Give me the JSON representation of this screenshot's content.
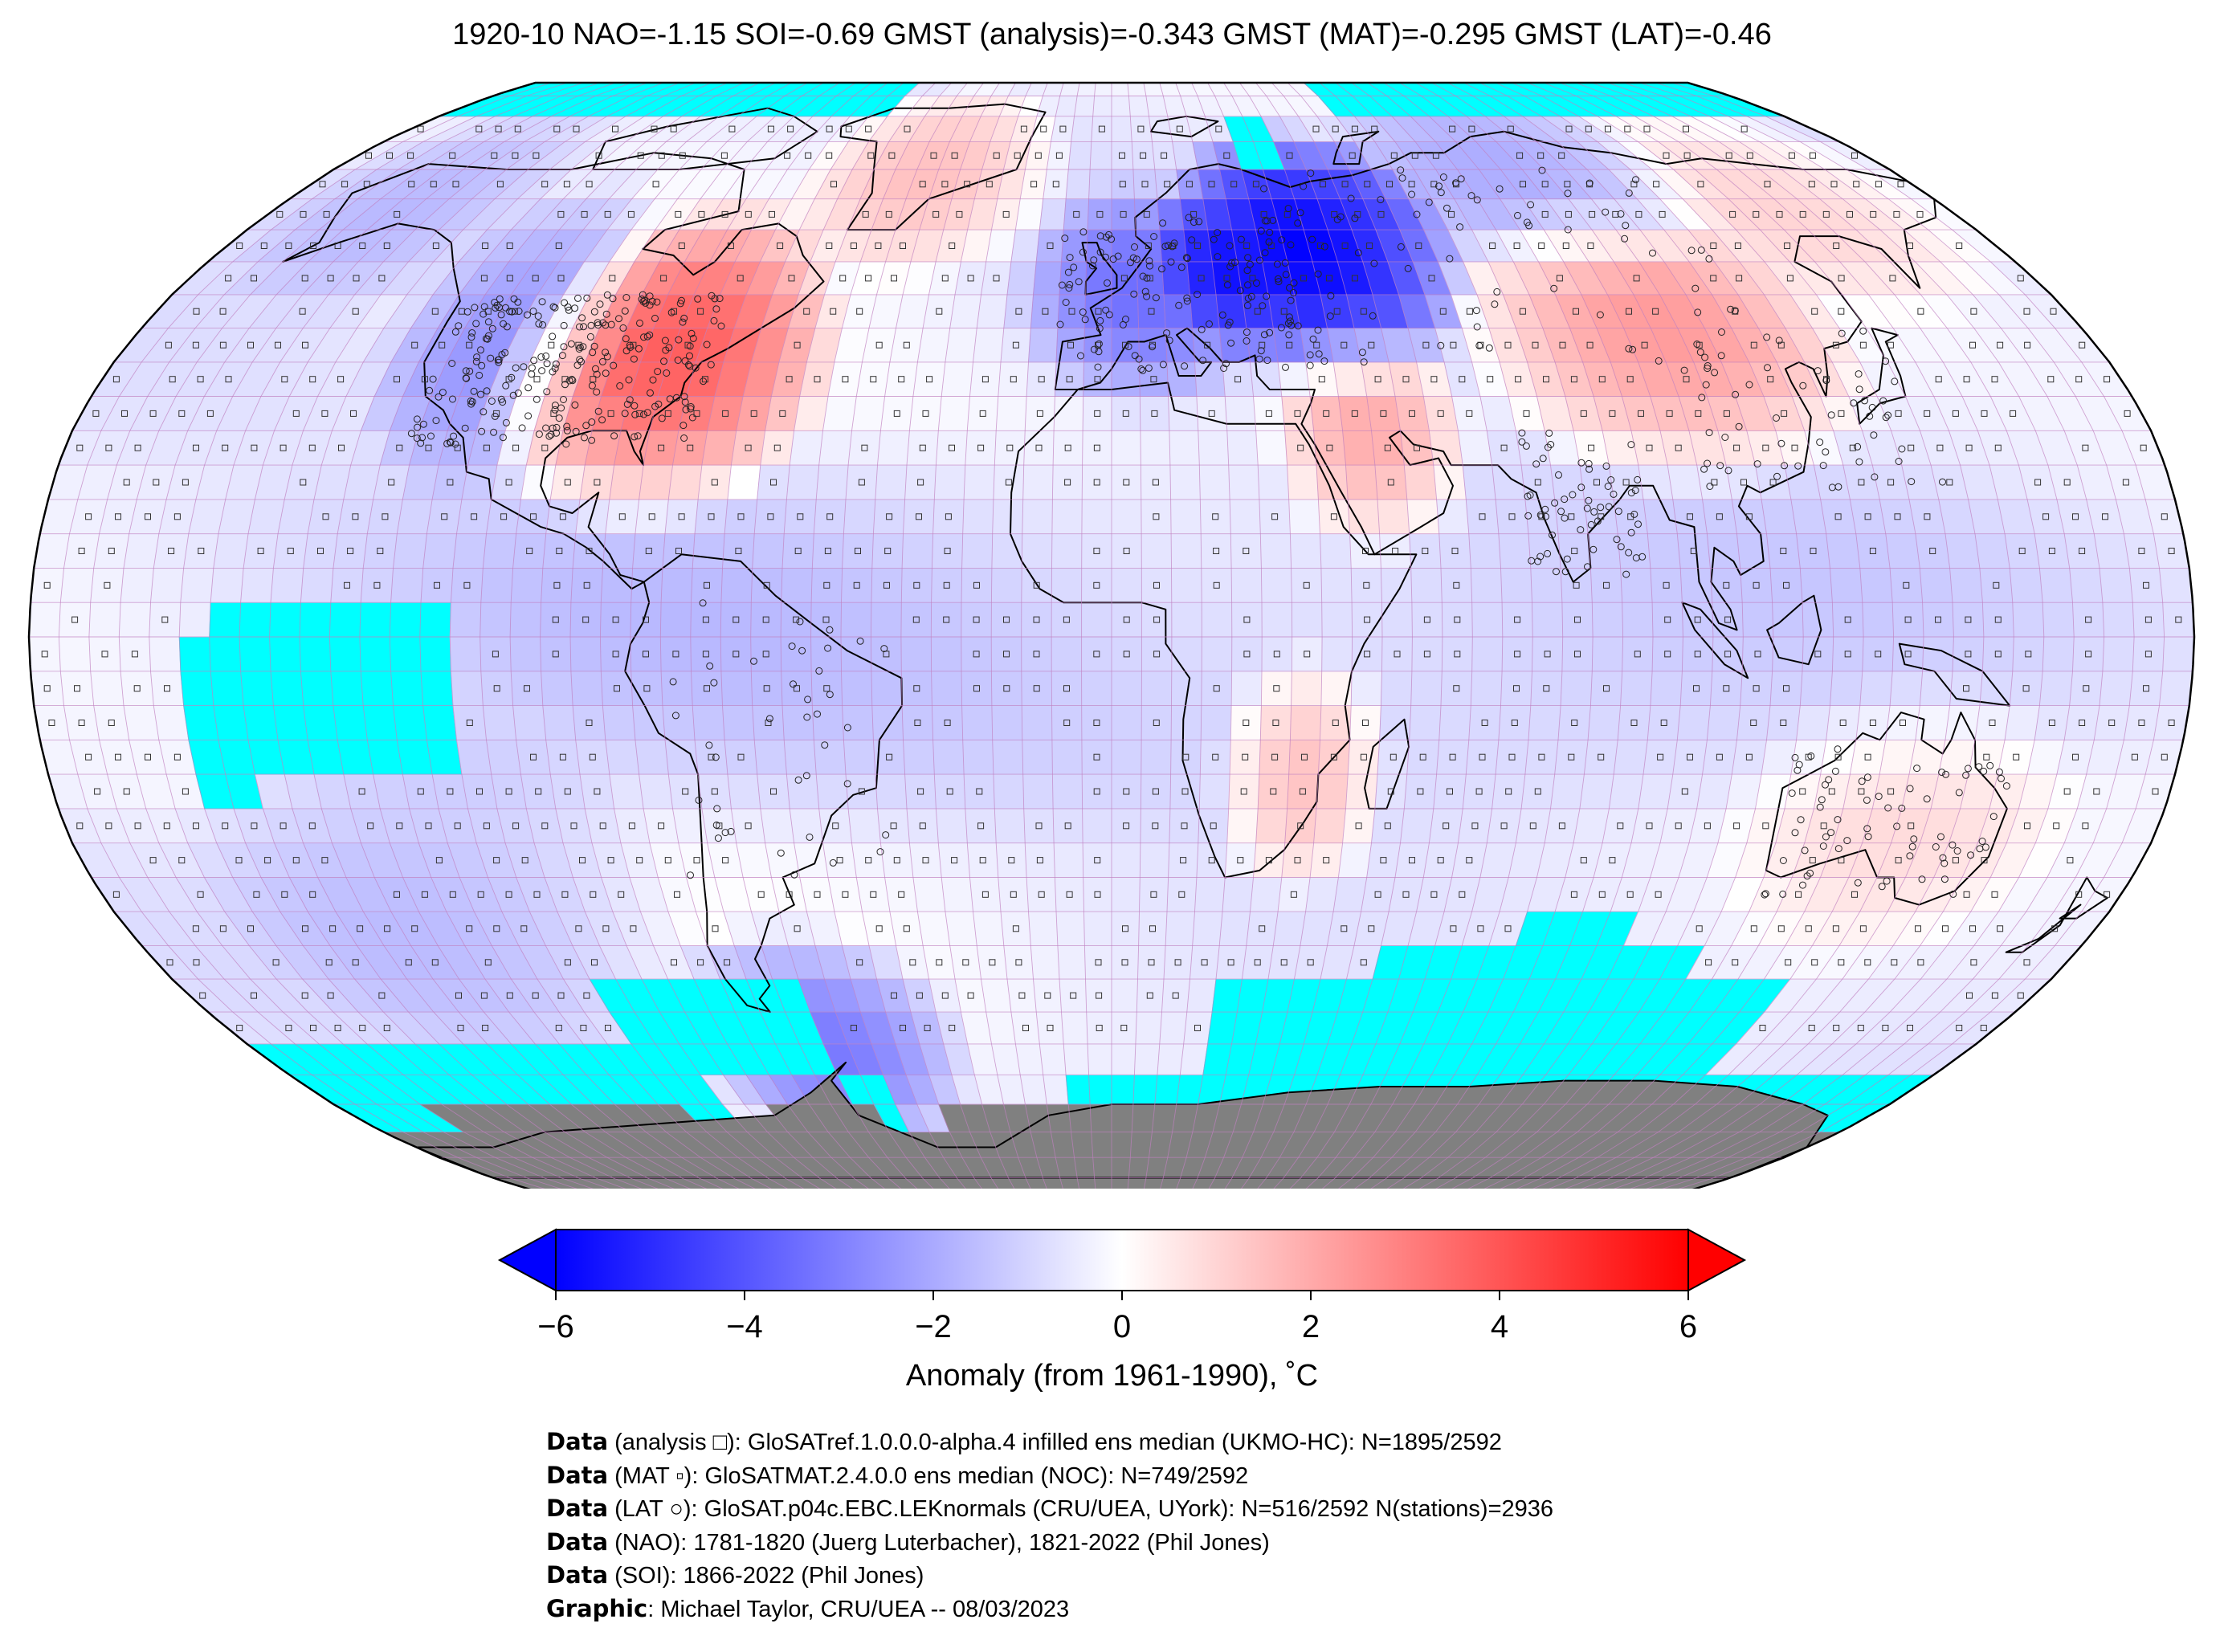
{
  "title": "1920-10 NAO=-1.15 SOI=-0.69 GMST (analysis)=-0.343 GMST (MAT)=-0.295 GMST (LAT)=-0.46",
  "projection": "Robinson",
  "colors": {
    "missing": "#00ffff",
    "antarctica": "#808080",
    "coastline": "#000000",
    "grid": "#c080c0",
    "cmap_min": "#0000ff",
    "cmap_mid": "#ffffff",
    "cmap_max": "#ff0000"
  },
  "colorbar": {
    "min": -6,
    "max": 6,
    "extend": "both",
    "ticks": [
      "−6",
      "−4",
      "−2",
      "0",
      "2",
      "4",
      "6"
    ],
    "tick_values": [
      -6,
      -4,
      -2,
      0,
      2,
      4,
      6
    ],
    "label": "Anomaly (from 1961-1990), ˚C"
  },
  "credits": [
    {
      "key": "Data",
      "text": " (analysis □): GloSATref.1.0.0.0-alpha.4 infilled ens median (UKMO-HC): N=1895/2592"
    },
    {
      "key": "Data",
      "text": " (MAT ▫): GloSATMAT.2.4.0.0 ens median (NOC): N=749/2592"
    },
    {
      "key": "Data",
      "text": " (LAT ○): GloSAT.p04c.EBC.LEKnormals (CRU/UEA, UYork): N=516/2592 N(stations)=2936"
    },
    {
      "key": "Data",
      "text": " (NAO): 1781-1820 (Juerg Luterbacher), 1821-2022 (Phil Jones)"
    },
    {
      "key": "Data",
      "text": " (SOI): 1866-2022 (Phil Jones)"
    },
    {
      "key": "Graphic",
      "text": ": Michael Taylor, CRU/UEA -- 08/03/2023"
    }
  ],
  "anomaly_regions": [
    {
      "name": "eastern-north-america",
      "lon": [
        -100,
        -60
      ],
      "lat": [
        25,
        55
      ],
      "value": 3.8
    },
    {
      "name": "greenland",
      "lon": [
        -60,
        -20
      ],
      "lat": [
        60,
        80
      ],
      "value": 2.0
    },
    {
      "name": "western-north-america",
      "lon": [
        -125,
        -100
      ],
      "lat": [
        30,
        60
      ],
      "value": -2.2
    },
    {
      "name": "alaska",
      "lon": [
        -170,
        -130
      ],
      "lat": [
        55,
        75
      ],
      "value": -1.2
    },
    {
      "name": "eastern-europe-russia",
      "lon": [
        20,
        60
      ],
      "lat": [
        45,
        70
      ],
      "value": -5.2
    },
    {
      "name": "western-europe",
      "lon": [
        -10,
        20
      ],
      "lat": [
        40,
        60
      ],
      "value": -2.6
    },
    {
      "name": "siberia",
      "lon": [
        60,
        120
      ],
      "lat": [
        60,
        80
      ],
      "value": -2.0
    },
    {
      "name": "central-asia-china",
      "lon": [
        75,
        125
      ],
      "lat": [
        30,
        55
      ],
      "value": 2.6
    },
    {
      "name": "east-siberia",
      "lon": [
        125,
        175
      ],
      "lat": [
        55,
        75
      ],
      "value": 1.2
    },
    {
      "name": "arabia",
      "lon": [
        35,
        55
      ],
      "lat": [
        20,
        40
      ],
      "value": 2.5
    },
    {
      "name": "southeast-africa",
      "lon": [
        25,
        40
      ],
      "lat": [
        -30,
        -10
      ],
      "value": 2.3
    },
    {
      "name": "australia",
      "lon": [
        115,
        155
      ],
      "lat": [
        -40,
        -15
      ],
      "value": 1.0
    },
    {
      "name": "drake-passage",
      "lon": [
        -80,
        -40
      ],
      "lat": [
        -70,
        -50
      ],
      "value": -3.0
    },
    {
      "name": "south-pacific",
      "lon": [
        -150,
        -90
      ],
      "lat": [
        -55,
        -20
      ],
      "value": -1.1
    },
    {
      "name": "tropical-ocean",
      "lon": [
        -180,
        180
      ],
      "lat": [
        -20,
        20
      ],
      "value": -0.8
    }
  ],
  "missing_regions": [
    {
      "lon": [
        -180,
        -60
      ],
      "lat": [
        80,
        90
      ]
    },
    {
      "lon": [
        60,
        180
      ],
      "lat": [
        80,
        90
      ]
    },
    {
      "lon": [
        30,
        40
      ],
      "lat": [
        70,
        80
      ]
    },
    {
      "lon": [
        -150,
        -110
      ],
      "lat": [
        -20,
        5
      ]
    },
    {
      "lon": [
        -155,
        -145
      ],
      "lat": [
        -25,
        0
      ]
    },
    {
      "lon": [
        -180,
        -90
      ],
      "lat": [
        -90,
        -60
      ]
    },
    {
      "lon": [
        -100,
        -60
      ],
      "lat": [
        -65,
        -50
      ]
    },
    {
      "lon": [
        -60,
        -50
      ],
      "lat": [
        -90,
        -65
      ]
    },
    {
      "lon": [
        -10,
        180
      ],
      "lat": [
        -90,
        -65
      ]
    },
    {
      "lon": [
        20,
        130
      ],
      "lat": [
        -65,
        -50
      ]
    },
    {
      "lon": [
        50,
        110
      ],
      "lat": [
        -50,
        -45
      ]
    },
    {
      "lon": [
        75,
        95
      ],
      "lat": [
        -45,
        -40
      ]
    },
    {
      "lon": [
        130,
        180
      ],
      "lat": [
        -90,
        -70
      ]
    }
  ]
}
